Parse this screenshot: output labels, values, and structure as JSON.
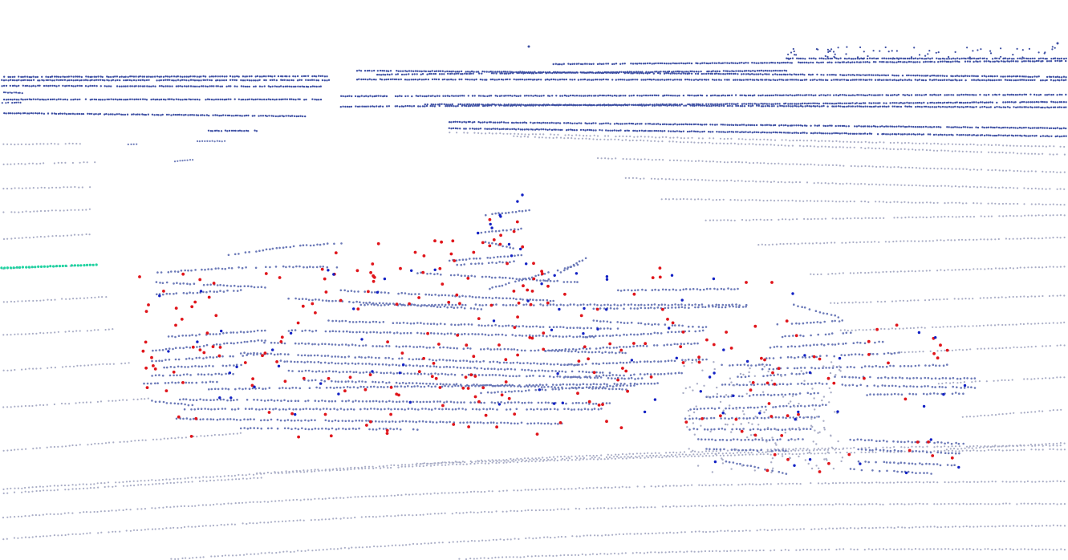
{
  "scene": {
    "background": "#ffffff",
    "colors": {
      "ground_point": "#a9adc6",
      "structure_point": "#3d4fa3",
      "structure_point_light": "#6c7ab8",
      "keypoint_red": "#e0151b",
      "keypoint_blue": "#1221c4",
      "highlight_green": "#1fd3a0"
    },
    "layers": [
      "ground-scan-lines",
      "background-structures",
      "vehicle-left",
      "vehicle-right",
      "keypoints-red",
      "keypoints-blue",
      "highlight-green"
    ]
  }
}
